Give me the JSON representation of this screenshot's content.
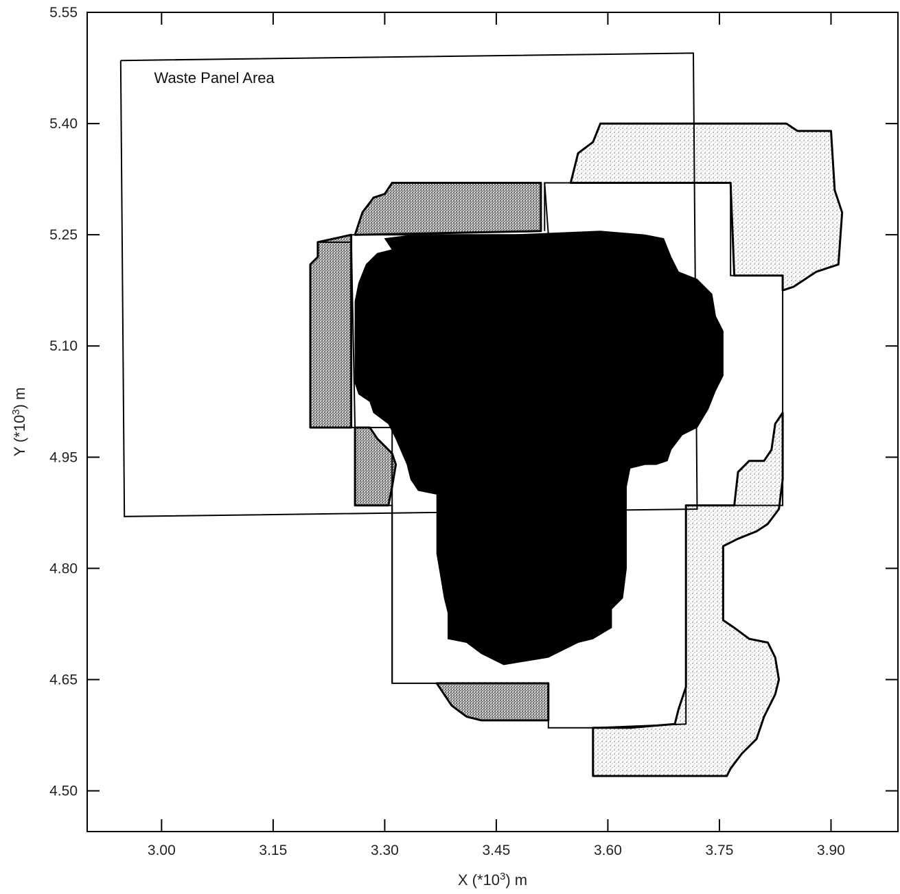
{
  "chart_data": {
    "type": "area",
    "title": "",
    "xlabel": {
      "prefix": "X (*10",
      "sup": "3",
      "suffix": ") m"
    },
    "ylabel": {
      "prefix": "Y (*10",
      "sup": "3",
      "suffix": ") m"
    },
    "xlim": [
      2.9,
      3.99
    ],
    "ylim": [
      4.445,
      5.55
    ],
    "x_ticks": [
      3.0,
      3.15,
      3.3,
      3.45,
      3.6,
      3.75,
      3.9
    ],
    "x_tick_labels": [
      "3.00",
      "3.15",
      "3.30",
      "3.45",
      "3.60",
      "3.75",
      "3.90"
    ],
    "y_ticks": [
      4.5,
      4.65,
      4.8,
      4.95,
      5.1,
      5.25,
      5.4,
      5.55
    ],
    "y_tick_labels": [
      "4.50",
      "4.65",
      "4.80",
      "4.95",
      "5.10",
      "5.25",
      "5.40",
      "5.55"
    ],
    "grid": false,
    "annotations": [
      {
        "text": "Waste Panel Area",
        "x": 2.99,
        "y": 5.462
      }
    ],
    "colors": {
      "light_stipple": "#cfcfcf",
      "dark_stipple": "#8a8a8a",
      "solid": "#000000"
    },
    "series": [
      {
        "style": "light-stipple",
        "points": [
          [
            3.55,
            5.32
          ],
          [
            3.56,
            5.36
          ],
          [
            3.58,
            5.375
          ],
          [
            3.59,
            5.4
          ],
          [
            3.72,
            5.4
          ],
          [
            3.84,
            5.4
          ],
          [
            3.855,
            5.39
          ],
          [
            3.9,
            5.39
          ],
          [
            3.905,
            5.31
          ],
          [
            3.915,
            5.28
          ],
          [
            3.91,
            5.21
          ],
          [
            3.88,
            5.2
          ],
          [
            3.85,
            5.18
          ],
          [
            3.835,
            5.175
          ],
          [
            3.835,
            5.195
          ],
          [
            3.77,
            5.195
          ],
          [
            3.765,
            5.32
          ],
          [
            3.55,
            5.32
          ]
        ]
      },
      {
        "style": "light-stipple",
        "points": [
          [
            3.73,
            4.885
          ],
          [
            3.77,
            4.885
          ],
          [
            3.775,
            4.93
          ],
          [
            3.79,
            4.945
          ],
          [
            3.81,
            4.945
          ],
          [
            3.82,
            4.96
          ],
          [
            3.825,
            4.995
          ],
          [
            3.835,
            5.01
          ],
          [
            3.835,
            4.92
          ],
          [
            3.83,
            4.88
          ],
          [
            3.815,
            4.86
          ],
          [
            3.8,
            4.85
          ],
          [
            3.775,
            4.84
          ],
          [
            3.755,
            4.83
          ],
          [
            3.755,
            4.76
          ],
          [
            3.755,
            4.73
          ],
          [
            3.77,
            4.72
          ],
          [
            3.79,
            4.705
          ],
          [
            3.815,
            4.7
          ],
          [
            3.825,
            4.68
          ],
          [
            3.83,
            4.65
          ],
          [
            3.825,
            4.63
          ],
          [
            3.81,
            4.6
          ],
          [
            3.8,
            4.57
          ],
          [
            3.78,
            4.55
          ],
          [
            3.765,
            4.53
          ],
          [
            3.76,
            4.52
          ],
          [
            3.58,
            4.52
          ],
          [
            3.58,
            4.585
          ],
          [
            3.63,
            4.585
          ],
          [
            3.69,
            4.59
          ],
          [
            3.695,
            4.61
          ],
          [
            3.705,
            4.64
          ],
          [
            3.705,
            4.7
          ],
          [
            3.705,
            4.78
          ],
          [
            3.705,
            4.885
          ],
          [
            3.73,
            4.885
          ]
        ]
      },
      {
        "style": "dark-stipple",
        "points": [
          [
            3.26,
            5.25
          ],
          [
            3.27,
            5.28
          ],
          [
            3.285,
            5.3
          ],
          [
            3.3,
            5.305
          ],
          [
            3.31,
            5.32
          ],
          [
            3.51,
            5.32
          ],
          [
            3.51,
            5.255
          ],
          [
            3.26,
            5.25
          ]
        ]
      },
      {
        "style": "dark-stipple",
        "points": [
          [
            3.255,
            5.25
          ],
          [
            3.21,
            5.24
          ],
          [
            3.21,
            5.22
          ],
          [
            3.2,
            5.21
          ],
          [
            3.2,
            4.99
          ],
          [
            3.22,
            4.99
          ],
          [
            3.22,
            4.99
          ],
          [
            3.255,
            4.99
          ],
          [
            3.255,
            5.25
          ]
        ]
      },
      {
        "style": "dark-stipple",
        "points": [
          [
            3.26,
            4.99
          ],
          [
            3.28,
            4.99
          ],
          [
            3.29,
            4.975
          ],
          [
            3.31,
            4.955
          ],
          [
            3.315,
            4.94
          ],
          [
            3.31,
            4.91
          ],
          [
            3.305,
            4.885
          ],
          [
            3.26,
            4.885
          ],
          [
            3.26,
            4.99
          ]
        ]
      },
      {
        "style": "dark-stipple",
        "points": [
          [
            3.37,
            4.645
          ],
          [
            3.52,
            4.645
          ],
          [
            3.52,
            4.595
          ],
          [
            3.43,
            4.595
          ],
          [
            3.41,
            4.6
          ],
          [
            3.39,
            4.615
          ],
          [
            3.37,
            4.645
          ]
        ]
      },
      {
        "style": "solid",
        "points": [
          [
            3.31,
            5.23
          ],
          [
            3.3,
            5.245
          ],
          [
            3.34,
            5.25
          ],
          [
            3.47,
            5.25
          ],
          [
            3.59,
            5.255
          ],
          [
            3.65,
            5.25
          ],
          [
            3.675,
            5.245
          ],
          [
            3.685,
            5.22
          ],
          [
            3.695,
            5.2
          ],
          [
            3.72,
            5.19
          ],
          [
            3.74,
            5.17
          ],
          [
            3.745,
            5.14
          ],
          [
            3.755,
            5.12
          ],
          [
            3.755,
            5.06
          ],
          [
            3.745,
            5.04
          ],
          [
            3.735,
            5.015
          ],
          [
            3.72,
            4.99
          ],
          [
            3.7,
            4.98
          ],
          [
            3.685,
            4.96
          ],
          [
            3.68,
            4.945
          ],
          [
            3.665,
            4.94
          ],
          [
            3.65,
            4.94
          ],
          [
            3.63,
            4.935
          ],
          [
            3.625,
            4.91
          ],
          [
            3.625,
            4.87
          ],
          [
            3.625,
            4.8
          ],
          [
            3.62,
            4.76
          ],
          [
            3.605,
            4.745
          ],
          [
            3.605,
            4.72
          ],
          [
            3.58,
            4.705
          ],
          [
            3.56,
            4.7
          ],
          [
            3.54,
            4.69
          ],
          [
            3.52,
            4.68
          ],
          [
            3.49,
            4.675
          ],
          [
            3.46,
            4.67
          ],
          [
            3.43,
            4.685
          ],
          [
            3.41,
            4.7
          ],
          [
            3.385,
            4.705
          ],
          [
            3.385,
            4.74
          ],
          [
            3.38,
            4.76
          ],
          [
            3.375,
            4.79
          ],
          [
            3.37,
            4.82
          ],
          [
            3.37,
            4.87
          ],
          [
            3.37,
            4.9
          ],
          [
            3.345,
            4.905
          ],
          [
            3.335,
            4.92
          ],
          [
            3.33,
            4.94
          ],
          [
            3.315,
            4.975
          ],
          [
            3.305,
            4.995
          ],
          [
            3.285,
            5.01
          ],
          [
            3.28,
            5.025
          ],
          [
            3.265,
            5.035
          ],
          [
            3.26,
            5.05
          ],
          [
            3.26,
            5.08
          ],
          [
            3.26,
            5.12
          ],
          [
            3.26,
            5.16
          ],
          [
            3.265,
            5.185
          ],
          [
            3.275,
            5.21
          ],
          [
            3.29,
            5.225
          ],
          [
            3.31,
            5.23
          ]
        ]
      }
    ],
    "outlines": [
      {
        "points": [
          [
            2.945,
            5.485
          ],
          [
            3.715,
            5.495
          ],
          [
            3.72,
            4.88
          ],
          [
            2.95,
            4.87
          ],
          [
            2.945,
            5.485
          ]
        ]
      },
      {
        "points": [
          [
            3.26,
            5.25
          ],
          [
            3.52,
            5.25
          ],
          [
            3.515,
            5.32
          ],
          [
            3.765,
            5.32
          ],
          [
            3.765,
            5.195
          ],
          [
            3.835,
            5.195
          ],
          [
            3.835,
            4.885
          ],
          [
            3.77,
            4.885
          ],
          [
            3.72,
            4.885
          ],
          [
            3.705,
            4.885
          ],
          [
            3.705,
            4.59
          ],
          [
            3.58,
            4.585
          ],
          [
            3.52,
            4.585
          ],
          [
            3.52,
            4.645
          ],
          [
            3.31,
            4.645
          ],
          [
            3.31,
            4.885
          ],
          [
            3.26,
            4.885
          ],
          [
            3.26,
            4.99
          ],
          [
            3.255,
            5.25
          ],
          [
            3.26,
            5.25
          ]
        ]
      },
      {
        "points": [
          [
            3.255,
            5.25
          ],
          [
            3.255,
            4.99
          ],
          [
            3.31,
            4.99
          ],
          [
            3.31,
            4.645
          ],
          [
            3.31,
            4.885
          ]
        ]
      },
      {
        "points": [
          [
            3.21,
            5.24
          ],
          [
            3.255,
            5.24
          ]
        ]
      },
      {
        "points": [
          [
            3.515,
            5.32
          ],
          [
            3.515,
            5.255
          ]
        ]
      },
      {
        "points": [
          [
            3.705,
            4.88
          ],
          [
            3.705,
            4.885
          ]
        ]
      },
      {
        "points": [
          [
            3.58,
            4.585
          ],
          [
            3.58,
            4.52
          ],
          [
            3.76,
            4.52
          ]
        ]
      }
    ]
  }
}
